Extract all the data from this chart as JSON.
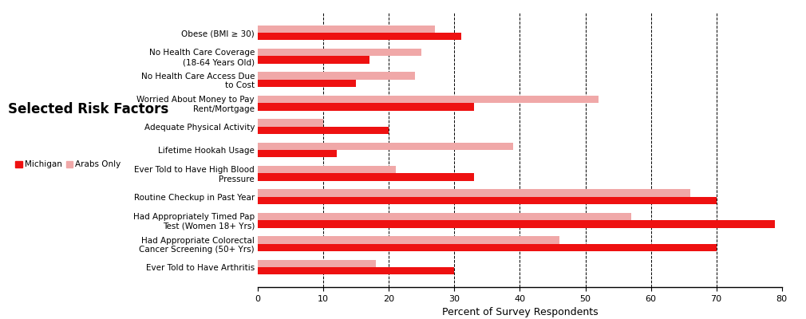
{
  "title": "Selected Risk Factors",
  "xlabel": "Percent of Survey Respondents",
  "legend_labels": [
    "Michigan",
    "Arabs Only"
  ],
  "categories": [
    "Obese (BMI ≥ 30)",
    "No Health Care Coverage\n(18-64 Years Old)",
    "No Health Care Access Due\nto Cost",
    "Worried About Money to Pay\nRent/Mortgage",
    "Adequate Physical Activity",
    "Lifetime Hookah Usage",
    "Ever Told to Have High Blood\nPressure",
    "Routine Checkup in Past Year",
    "Had Appropriately Timed Pap\nTest (Women 18+ Yrs)",
    "Had Appropriate Colorectal\nCancer Screening (50+ Yrs)",
    "Ever Told to Have Arthritis"
  ],
  "michigan_values": [
    31,
    17,
    15,
    33,
    20,
    12,
    33,
    70,
    79,
    70,
    30
  ],
  "arab_values": [
    27,
    25,
    24,
    52,
    10,
    39,
    21,
    66,
    57,
    46,
    18
  ],
  "xlim": [
    0,
    80
  ],
  "xticks": [
    0,
    10,
    20,
    30,
    40,
    50,
    60,
    70,
    80
  ],
  "grid_color": "#000000",
  "bar_height": 0.32,
  "michigan_color": "#ee1111",
  "arab_color": "#f0a8a8",
  "background_color": "#ffffff",
  "title_fontsize": 12,
  "label_fontsize": 7.5,
  "tick_fontsize": 8,
  "xlabel_fontsize": 9
}
